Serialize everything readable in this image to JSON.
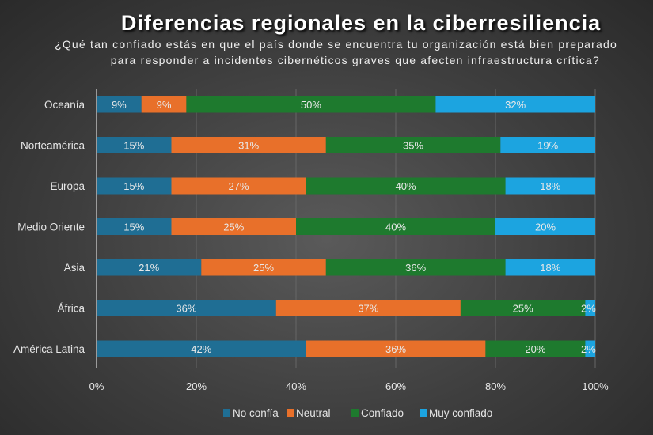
{
  "chart_data": {
    "type": "bar",
    "orientation": "horizontal-stacked-100",
    "title": "Diferencias regionales en la ciberresiliencia",
    "subtitle_lines": [
      "¿Qué tan confiado estás en que el país donde se encuentra tu organización está bien preparado",
      "para responder a incidentes cibernéticos graves que afecten infraestructura crítica?"
    ],
    "categories": [
      "Oceanía",
      "Norteamérica",
      "Europa",
      "Medio Oriente",
      "Asia",
      "África",
      "América Latina"
    ],
    "series": [
      {
        "name": "No confía",
        "color": "#1f6e94",
        "values": [
          9,
          15,
          15,
          15,
          21,
          36,
          42
        ]
      },
      {
        "name": "Neutral",
        "color": "#e8702a",
        "values": [
          9,
          31,
          27,
          25,
          25,
          37,
          36
        ]
      },
      {
        "name": "Confiado",
        "color": "#1e7a2e",
        "values": [
          50,
          35,
          40,
          40,
          36,
          25,
          20
        ]
      },
      {
        "name": "Muy confiado",
        "color": "#1ca4e0",
        "values": [
          32,
          19,
          18,
          20,
          18,
          2,
          2
        ]
      }
    ],
    "xlim": [
      0,
      100
    ],
    "xticks": [
      "0%",
      "20%",
      "40%",
      "60%",
      "80%",
      "100%"
    ],
    "grid": true,
    "legend_position": "bottom"
  }
}
